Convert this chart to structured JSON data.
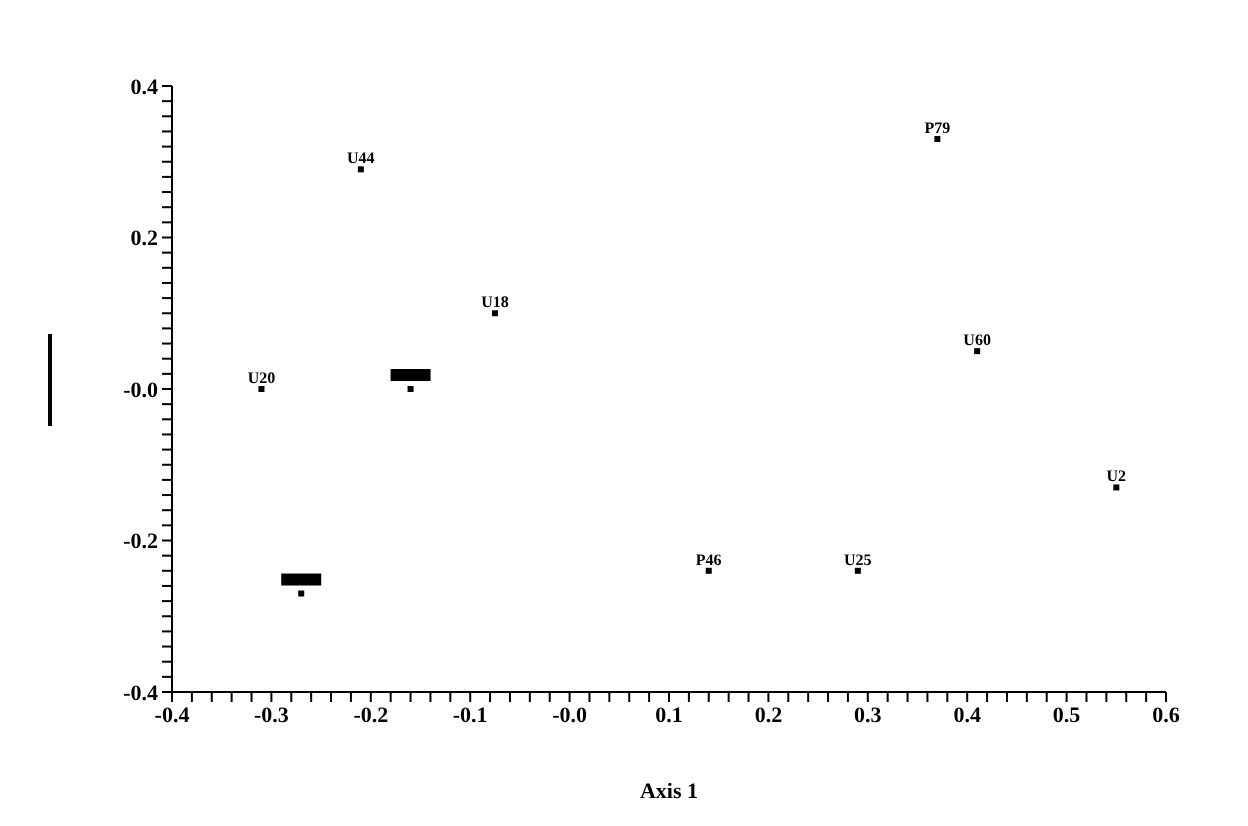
{
  "chart_data": {
    "type": "scatter",
    "xlabel": "Axis 1",
    "marker": "square",
    "grid": false,
    "legend": false,
    "x": [
      -0.21,
      -0.075,
      -0.31,
      -0.16,
      -0.27,
      0.37,
      0.41,
      0.55,
      0.14,
      0.29
    ],
    "values": [
      0.29,
      0.1,
      0.0,
      0.0,
      -0.27,
      0.33,
      0.05,
      -0.13,
      -0.24,
      -0.24
    ],
    "value_labels": [
      "U44",
      "U18",
      "U20",
      null,
      null,
      "P79",
      "U60",
      "U2",
      "P46",
      "U25"
    ],
    "color": "#000000",
    "xlim": [
      -0.4,
      0.6
    ],
    "ylim": [
      -0.4,
      0.4
    ],
    "xticks": [
      -0.4,
      {
        "value": -0.38,
        "label": null
      },
      {
        "value": -0.36,
        "label": null
      },
      {
        "value": -0.34,
        "label": null
      },
      {
        "value": -0.32,
        "label": null
      },
      -0.3,
      {
        "value": -0.28,
        "label": null
      },
      {
        "value": -0.26,
        "label": null
      },
      {
        "value": -0.24,
        "label": null
      },
      {
        "value": -0.22,
        "label": null
      },
      -0.2,
      {
        "value": -0.18,
        "label": null
      },
      {
        "value": -0.16,
        "label": null
      },
      {
        "value": -0.14,
        "label": null
      },
      {
        "value": -0.12,
        "label": null
      },
      -0.1,
      {
        "value": -0.08,
        "label": null
      },
      {
        "value": -0.06,
        "label": null
      },
      {
        "value": -0.04,
        "label": null
      },
      {
        "value": -0.02,
        "label": null
      },
      {
        "value": 0,
        "label": "-0.0"
      },
      {
        "value": 0.02,
        "label": null
      },
      {
        "value": 0.04,
        "label": null
      },
      {
        "value": 0.06,
        "label": null
      },
      {
        "value": 0.08,
        "label": null
      },
      0.1,
      {
        "value": 0.12,
        "label": null
      },
      {
        "value": 0.14,
        "label": null
      },
      {
        "value": 0.16,
        "label": null
      },
      {
        "value": 0.18,
        "label": null
      },
      0.2,
      {
        "value": 0.22,
        "label": null
      },
      {
        "value": 0.24,
        "label": null
      },
      {
        "value": 0.26,
        "label": null
      },
      {
        "value": 0.28,
        "label": null
      },
      0.3,
      {
        "value": 0.32,
        "label": null
      },
      {
        "value": 0.34,
        "label": null
      },
      {
        "value": 0.36,
        "label": null
      },
      {
        "value": 0.38,
        "label": null
      },
      0.4,
      {
        "value": 0.42,
        "label": null
      },
      {
        "value": 0.44,
        "label": null
      },
      {
        "value": 0.46,
        "label": null
      },
      {
        "value": 0.48,
        "label": null
      },
      0.5,
      {
        "value": 0.52,
        "label": null
      },
      {
        "value": 0.54,
        "label": null
      },
      {
        "value": 0.56,
        "label": null
      },
      {
        "value": 0.58,
        "label": null
      },
      0.6
    ],
    "yticks": [
      -0.4,
      {
        "value": -0.38,
        "label": null
      },
      {
        "value": -0.36,
        "label": null
      },
      {
        "value": -0.34,
        "label": null
      },
      {
        "value": -0.32,
        "label": null
      },
      {
        "value": -0.3,
        "label": null
      },
      {
        "value": -0.28,
        "label": null
      },
      {
        "value": -0.26,
        "label": null
      },
      {
        "value": -0.24,
        "label": null
      },
      {
        "value": -0.22,
        "label": null
      },
      -0.2,
      {
        "value": -0.18,
        "label": null
      },
      {
        "value": -0.16,
        "label": null
      },
      {
        "value": -0.14,
        "label": null
      },
      {
        "value": -0.12,
        "label": null
      },
      {
        "value": -0.1,
        "label": null
      },
      {
        "value": -0.08,
        "label": null
      },
      {
        "value": -0.06,
        "label": null
      },
      {
        "value": -0.04,
        "label": null
      },
      {
        "value": -0.02,
        "label": null
      },
      {
        "value": 0,
        "label": "-0.0"
      },
      {
        "value": 0.02,
        "label": null
      },
      {
        "value": 0.04,
        "label": null
      },
      {
        "value": 0.06,
        "label": null
      },
      {
        "value": 0.08,
        "label": null
      },
      {
        "value": 0.1,
        "label": null
      },
      {
        "value": 0.12,
        "label": null
      },
      {
        "value": 0.14,
        "label": null
      },
      {
        "value": 0.16,
        "label": null
      },
      {
        "value": 0.18,
        "label": null
      },
      0.2,
      {
        "value": 0.22,
        "label": null
      },
      {
        "value": 0.24,
        "label": null
      },
      {
        "value": 0.26,
        "label": null
      },
      {
        "value": 0.28,
        "label": null
      },
      {
        "value": 0.3,
        "label": null
      },
      {
        "value": 0.32,
        "label": null
      },
      {
        "value": 0.34,
        "label": null
      },
      {
        "value": 0.36,
        "label": null
      },
      {
        "value": 0.38,
        "label": null
      },
      0.4
    ]
  }
}
